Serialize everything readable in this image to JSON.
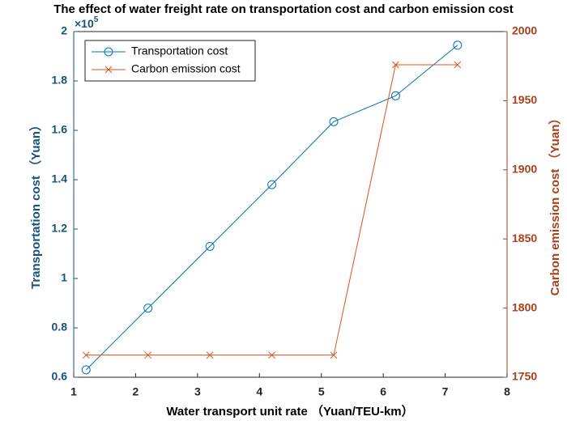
{
  "chart_data": {
    "type": "line",
    "title": "The effect of water freight rate on transportation cost and carbon emission cost",
    "x_label": "Water transport unit rate （Yuan/TEU-km）",
    "y_label": "Transportation cost （Yuan）",
    "y2_label": "Carbon emission cost （Yuan）",
    "y_multiplier": {
      "base": "×10",
      "exponent": "5"
    },
    "x": [
      1.2,
      2.2,
      3.2,
      4.2,
      5.2,
      6.2,
      7.2
    ],
    "series": [
      {
        "name": "Transportation cost",
        "color": "#0072BD",
        "marker": "o",
        "axis": "y",
        "values": [
          0.63,
          0.88,
          1.13,
          1.38,
          1.635,
          1.74,
          1.945
        ]
      },
      {
        "name": "Carbon emission cost",
        "color": "#D95319",
        "marker": "x",
        "axis": "y2",
        "values": [
          1766,
          1766,
          1766,
          1766,
          1766,
          1976,
          1976
        ]
      }
    ],
    "xlim": [
      1,
      8
    ],
    "xticks": [
      1,
      2,
      3,
      4,
      5,
      6,
      7,
      8
    ],
    "ylim": [
      0.6,
      2
    ],
    "yticks": [
      0.6,
      0.8,
      1,
      1.2,
      1.4,
      1.6,
      1.8,
      2
    ],
    "y2lim": [
      1750,
      2000
    ],
    "y2ticks": [
      1750,
      1800,
      1850,
      1900,
      1950,
      2000
    ],
    "y_axis_color": "#17527e",
    "y2_axis_color": "#a8401a",
    "legend": "upper left",
    "grid": false
  }
}
